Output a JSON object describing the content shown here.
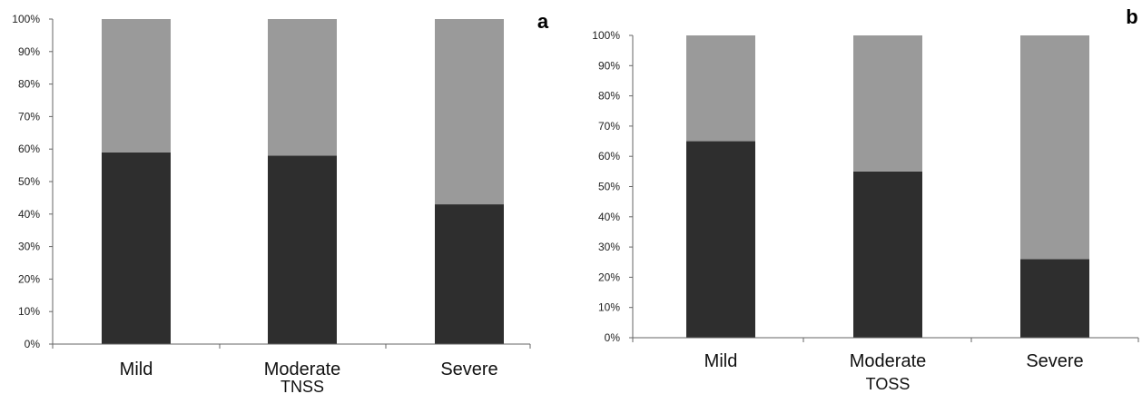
{
  "colors": {
    "lower": "#2e2e2e",
    "upper": "#9a9a9a",
    "axis": "#666666"
  },
  "chart_data": [
    {
      "type": "bar",
      "stacked": true,
      "panel_label": "a",
      "title": "",
      "xlabel": "TNSS",
      "ylabel": "",
      "ylim": [
        0,
        100
      ],
      "yticks": [
        "0%",
        "10%",
        "20%",
        "30%",
        "40%",
        "50%",
        "60%",
        "70%",
        "80%",
        "90%",
        "100%"
      ],
      "categories": [
        "Mild",
        "Moderate",
        "Severe"
      ],
      "series": [
        {
          "values": [
            59,
            58,
            43
          ]
        },
        {
          "values": [
            41,
            42,
            57
          ]
        }
      ],
      "grid": false,
      "legend": "none"
    },
    {
      "type": "bar",
      "stacked": true,
      "panel_label": "b",
      "title": "",
      "xlabel": "TOSS",
      "ylabel": "",
      "ylim": [
        0,
        100
      ],
      "yticks": [
        "0%",
        "10%",
        "20%",
        "30%",
        "40%",
        "50%",
        "60%",
        "70%",
        "80%",
        "90%",
        "100%"
      ],
      "categories": [
        "Mild",
        "Moderate",
        "Severe"
      ],
      "series": [
        {
          "values": [
            65,
            55,
            26
          ]
        },
        {
          "values": [
            35,
            45,
            74
          ]
        }
      ],
      "grid": false,
      "legend": "none"
    }
  ]
}
